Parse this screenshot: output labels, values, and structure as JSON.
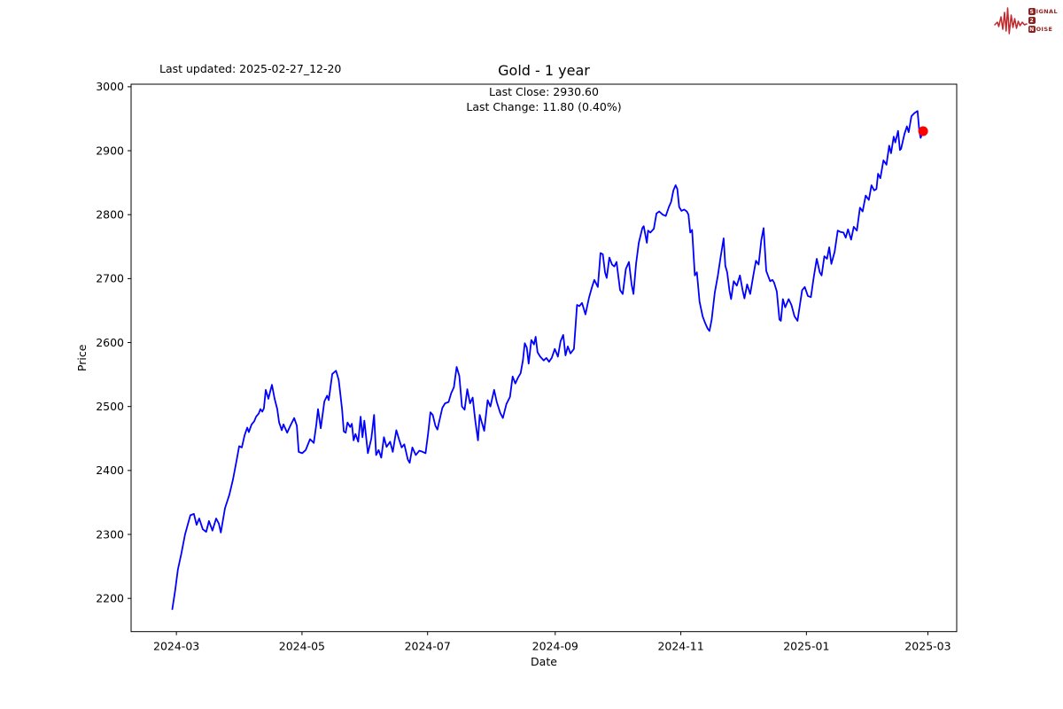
{
  "header": {
    "last_updated": "Last updated: 2025-02-27_12-20"
  },
  "logo": {
    "s": "S",
    "ignal": "IGNAL",
    "two": "2",
    "n": "N",
    "oise": "OISE",
    "wave_color": "#c3272b",
    "box_color": "#8e1f1b"
  },
  "chart_data": {
    "type": "line",
    "title": "Gold - 1 year",
    "subtitle_line1": "Last Close: 2930.60",
    "subtitle_line2": "Last Change: 11.80 (0.40%)",
    "xlabel": "Date",
    "ylabel": "Price",
    "line_color": "#0000ff",
    "marker_color": "#ff0000",
    "grid": false,
    "legend": "none",
    "x_unit": "days since 2024-02-28",
    "xlim": [
      -20,
      381
    ],
    "ylim": [
      2148,
      3004
    ],
    "yticks": [
      2200,
      2300,
      2400,
      2500,
      2600,
      2700,
      2800,
      2900,
      3000
    ],
    "xticks": [
      {
        "day": 2,
        "label": "2024-03"
      },
      {
        "day": 63,
        "label": "2024-05"
      },
      {
        "day": 124,
        "label": "2024-07"
      },
      {
        "day": 186,
        "label": "2024-09"
      },
      {
        "day": 247,
        "label": "2024-11"
      },
      {
        "day": 308,
        "label": "2025-01"
      },
      {
        "day": 367,
        "label": "2025-03"
      }
    ],
    "last_point": {
      "day": 364.7,
      "price": 2930.6
    },
    "points": [
      [
        0,
        2183
      ],
      [
        1.4,
        2212
      ],
      [
        2.7,
        2245
      ],
      [
        4.4,
        2270
      ],
      [
        6.2,
        2300
      ],
      [
        8.8,
        2330
      ],
      [
        10.5,
        2332
      ],
      [
        11.8,
        2315
      ],
      [
        13.1,
        2325
      ],
      [
        14.8,
        2308
      ],
      [
        16.5,
        2304
      ],
      [
        17.8,
        2321
      ],
      [
        19.5,
        2306
      ],
      [
        21.3,
        2325
      ],
      [
        22.6,
        2317
      ],
      [
        23.6,
        2303
      ],
      [
        25.6,
        2341
      ],
      [
        27.7,
        2362
      ],
      [
        29.5,
        2386
      ],
      [
        31.2,
        2415
      ],
      [
        32.5,
        2438
      ],
      [
        33.8,
        2436
      ],
      [
        35.1,
        2455
      ],
      [
        36.4,
        2467
      ],
      [
        37.2,
        2460
      ],
      [
        38.5,
        2472
      ],
      [
        39.8,
        2477
      ],
      [
        40.7,
        2484
      ],
      [
        42,
        2489
      ],
      [
        42.8,
        2496
      ],
      [
        43.7,
        2492
      ],
      [
        44.5,
        2497
      ],
      [
        45.4,
        2526
      ],
      [
        46.7,
        2512
      ],
      [
        47.6,
        2524
      ],
      [
        48.4,
        2534
      ],
      [
        49.7,
        2512
      ],
      [
        51,
        2496
      ],
      [
        51.9,
        2475
      ],
      [
        53.2,
        2463
      ],
      [
        54,
        2472
      ],
      [
        55.8,
        2459
      ],
      [
        57.5,
        2471
      ],
      [
        59.2,
        2482
      ],
      [
        60.5,
        2470
      ],
      [
        61.4,
        2429
      ],
      [
        63.1,
        2427
      ],
      [
        64.8,
        2432
      ],
      [
        66.9,
        2449
      ],
      [
        68.7,
        2443
      ],
      [
        70,
        2473
      ],
      [
        70.8,
        2496
      ],
      [
        72.1,
        2466
      ],
      [
        73.9,
        2508
      ],
      [
        75.2,
        2517
      ],
      [
        76,
        2510
      ],
      [
        77.7,
        2551
      ],
      [
        79.5,
        2556
      ],
      [
        80.8,
        2542
      ],
      [
        81.6,
        2521
      ],
      [
        82.5,
        2495
      ],
      [
        83.3,
        2461
      ],
      [
        84.2,
        2459
      ],
      [
        85.1,
        2475
      ],
      [
        86.4,
        2468
      ],
      [
        87.2,
        2473
      ],
      [
        88.1,
        2447
      ],
      [
        89,
        2457
      ],
      [
        90.3,
        2445
      ],
      [
        91.5,
        2484
      ],
      [
        92.4,
        2452
      ],
      [
        93.3,
        2478
      ],
      [
        95,
        2427
      ],
      [
        96.7,
        2450
      ],
      [
        98,
        2487
      ],
      [
        99,
        2424
      ],
      [
        100.2,
        2432
      ],
      [
        101.5,
        2420
      ],
      [
        102.8,
        2452
      ],
      [
        104.1,
        2437
      ],
      [
        105.8,
        2445
      ],
      [
        107.1,
        2429
      ],
      [
        108.8,
        2463
      ],
      [
        110.1,
        2449
      ],
      [
        111.4,
        2436
      ],
      [
        112.7,
        2441
      ],
      [
        114.4,
        2417
      ],
      [
        115.3,
        2412
      ],
      [
        116.6,
        2436
      ],
      [
        118.3,
        2424
      ],
      [
        120,
        2431
      ],
      [
        121.7,
        2429
      ],
      [
        123,
        2427
      ],
      [
        124.3,
        2459
      ],
      [
        125.4,
        2491
      ],
      [
        126.5,
        2487
      ],
      [
        127.8,
        2470
      ],
      [
        128.8,
        2464
      ],
      [
        129.9,
        2480
      ],
      [
        131.2,
        2498
      ],
      [
        132.5,
        2505
      ],
      [
        134.2,
        2507
      ],
      [
        135.5,
        2521
      ],
      [
        136.8,
        2530
      ],
      [
        138.1,
        2562
      ],
      [
        139.4,
        2548
      ],
      [
        140.7,
        2500
      ],
      [
        142,
        2495
      ],
      [
        143.3,
        2527
      ],
      [
        144.6,
        2505
      ],
      [
        145.9,
        2514
      ],
      [
        147.2,
        2477
      ],
      [
        148.5,
        2447
      ],
      [
        149.3,
        2487
      ],
      [
        151.5,
        2462
      ],
      [
        153.2,
        2510
      ],
      [
        154.5,
        2500
      ],
      [
        156.3,
        2526
      ],
      [
        157.6,
        2507
      ],
      [
        159.3,
        2490
      ],
      [
        160.6,
        2482
      ],
      [
        162.3,
        2504
      ],
      [
        164,
        2515
      ],
      [
        165.3,
        2547
      ],
      [
        166.6,
        2536
      ],
      [
        167.9,
        2545
      ],
      [
        169.2,
        2552
      ],
      [
        170.3,
        2572
      ],
      [
        171.2,
        2599
      ],
      [
        172.2,
        2592
      ],
      [
        173.1,
        2567
      ],
      [
        174.4,
        2604
      ],
      [
        175.7,
        2597
      ],
      [
        176.5,
        2609
      ],
      [
        177.4,
        2585
      ],
      [
        178.7,
        2578
      ],
      [
        180.4,
        2572
      ],
      [
        181.7,
        2576
      ],
      [
        183,
        2570
      ],
      [
        184.3,
        2576
      ],
      [
        185.8,
        2590
      ],
      [
        187.3,
        2578
      ],
      [
        188.6,
        2602
      ],
      [
        189.9,
        2612
      ],
      [
        191,
        2580
      ],
      [
        192.1,
        2594
      ],
      [
        193.4,
        2583
      ],
      [
        195.1,
        2590
      ],
      [
        196.6,
        2659
      ],
      [
        197.7,
        2657
      ],
      [
        199,
        2662
      ],
      [
        200.7,
        2644
      ],
      [
        202.4,
        2670
      ],
      [
        203.7,
        2685
      ],
      [
        205,
        2698
      ],
      [
        206.7,
        2687
      ],
      [
        208,
        2740
      ],
      [
        209.1,
        2738
      ],
      [
        210.2,
        2710
      ],
      [
        211,
        2701
      ],
      [
        212.3,
        2733
      ],
      [
        213.6,
        2722
      ],
      [
        214.7,
        2719
      ],
      [
        215.8,
        2726
      ],
      [
        217.5,
        2682
      ],
      [
        218.8,
        2676
      ],
      [
        220.3,
        2715
      ],
      [
        221.8,
        2726
      ],
      [
        223.1,
        2691
      ],
      [
        224,
        2676
      ],
      [
        225.3,
        2724
      ],
      [
        226.6,
        2756
      ],
      [
        228.3,
        2779
      ],
      [
        229,
        2782
      ],
      [
        230.5,
        2756
      ],
      [
        231.1,
        2775
      ],
      [
        232.2,
        2772
      ],
      [
        233.9,
        2778
      ],
      [
        235.2,
        2802
      ],
      [
        236.5,
        2805
      ],
      [
        238.2,
        2800
      ],
      [
        239.7,
        2798
      ],
      [
        241.2,
        2812
      ],
      [
        242.3,
        2820
      ],
      [
        243.4,
        2838
      ],
      [
        244.5,
        2846
      ],
      [
        245.3,
        2840
      ],
      [
        246.2,
        2812
      ],
      [
        247.3,
        2806
      ],
      [
        248.6,
        2808
      ],
      [
        249.9,
        2805
      ],
      [
        250.7,
        2800
      ],
      [
        251.6,
        2772
      ],
      [
        252.5,
        2776
      ],
      [
        253.8,
        2705
      ],
      [
        254.8,
        2710
      ],
      [
        256.1,
        2664
      ],
      [
        257.6,
        2641
      ],
      [
        258.9,
        2630
      ],
      [
        260,
        2622
      ],
      [
        260.9,
        2618
      ],
      [
        262,
        2636
      ],
      [
        263.5,
        2678
      ],
      [
        265,
        2705
      ],
      [
        266.3,
        2733
      ],
      [
        267.8,
        2763
      ],
      [
        268.6,
        2720
      ],
      [
        269.5,
        2710
      ],
      [
        270.6,
        2682
      ],
      [
        271.4,
        2668
      ],
      [
        272.7,
        2696
      ],
      [
        274.2,
        2689
      ],
      [
        275.7,
        2705
      ],
      [
        277,
        2682
      ],
      [
        277.9,
        2669
      ],
      [
        279.2,
        2691
      ],
      [
        280.7,
        2676
      ],
      [
        282.2,
        2705
      ],
      [
        283.5,
        2728
      ],
      [
        284.8,
        2722
      ],
      [
        286.1,
        2760
      ],
      [
        287.2,
        2779
      ],
      [
        288.5,
        2712
      ],
      [
        289.3,
        2705
      ],
      [
        290.4,
        2696
      ],
      [
        291.5,
        2698
      ],
      [
        292.3,
        2694
      ],
      [
        293.6,
        2680
      ],
      [
        294.9,
        2636
      ],
      [
        295.6,
        2634
      ],
      [
        296.6,
        2668
      ],
      [
        297.7,
        2655
      ],
      [
        299.4,
        2668
      ],
      [
        300.7,
        2659
      ],
      [
        302.2,
        2641
      ],
      [
        303.7,
        2634
      ],
      [
        305.9,
        2682
      ],
      [
        307.2,
        2687
      ],
      [
        308.7,
        2673
      ],
      [
        310.2,
        2671
      ],
      [
        311.5,
        2701
      ],
      [
        313,
        2731
      ],
      [
        314.5,
        2710
      ],
      [
        315.4,
        2705
      ],
      [
        316.7,
        2735
      ],
      [
        318,
        2731
      ],
      [
        319.1,
        2749
      ],
      [
        320.1,
        2723
      ],
      [
        321.7,
        2742
      ],
      [
        323.2,
        2775
      ],
      [
        324.5,
        2773
      ],
      [
        326,
        2772
      ],
      [
        327.1,
        2764
      ],
      [
        328.2,
        2777
      ],
      [
        329.7,
        2761
      ],
      [
        331,
        2781
      ],
      [
        332.5,
        2775
      ],
      [
        334,
        2811
      ],
      [
        335.3,
        2805
      ],
      [
        336.8,
        2830
      ],
      [
        338.3,
        2823
      ],
      [
        339.6,
        2846
      ],
      [
        340.9,
        2838
      ],
      [
        342,
        2840
      ],
      [
        342.8,
        2864
      ],
      [
        343.9,
        2857
      ],
      [
        345.4,
        2885
      ],
      [
        346.9,
        2878
      ],
      [
        348.2,
        2908
      ],
      [
        349.1,
        2896
      ],
      [
        350.4,
        2922
      ],
      [
        351.2,
        2913
      ],
      [
        352.5,
        2931
      ],
      [
        353.4,
        2901
      ],
      [
        354,
        2903
      ],
      [
        355.6,
        2926
      ],
      [
        356.8,
        2938
      ],
      [
        357.7,
        2929
      ],
      [
        359,
        2954
      ],
      [
        360.5,
        2959
      ],
      [
        362,
        2962
      ],
      [
        362.9,
        2929
      ],
      [
        363.5,
        2920
      ],
      [
        364.7,
        2930.6
      ]
    ]
  }
}
